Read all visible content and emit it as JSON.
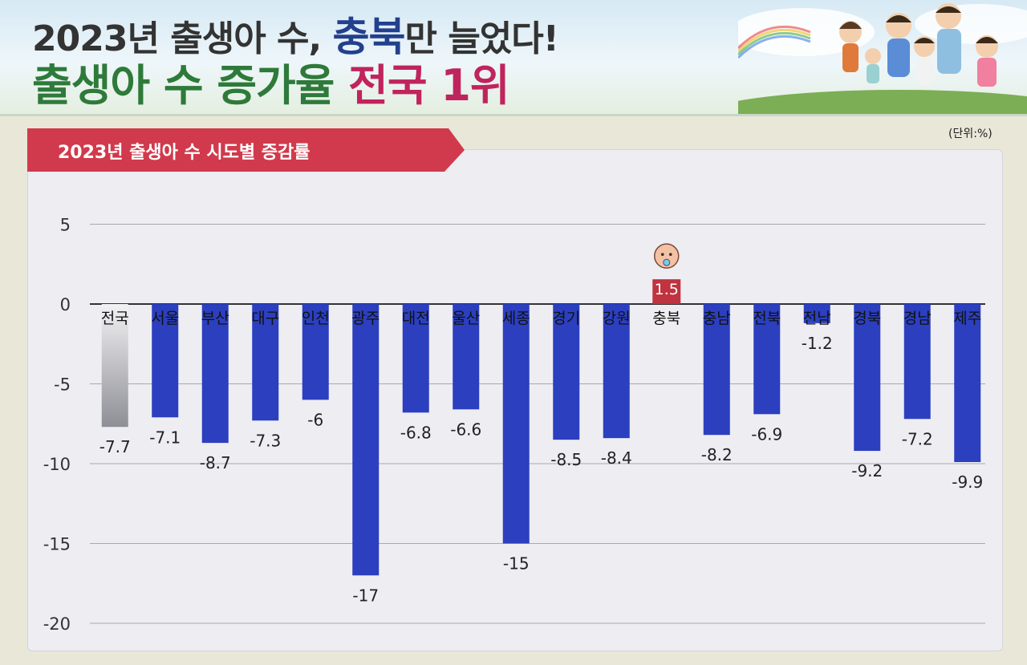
{
  "header": {
    "line1_part1": "2023년 출생아 수, ",
    "line1_highlight": "충북",
    "line1_part2": "만 늘었다!",
    "line2_part1": "출생아 수 증가율 ",
    "line2_highlight": "전국 1위"
  },
  "colors": {
    "bar": "#2b3fbf",
    "national_bar_top": "#f2f2f4",
    "national_bar_bottom": "#8e8e96",
    "highlight_bar": "#c0333f",
    "banner": "#d13a4c",
    "grid": "#a9a9b3",
    "zero_line": "#333333"
  },
  "chart_data": {
    "type": "bar",
    "title": "2023년 출생아 수 시도별 증감률",
    "unit": "(단위:%)",
    "categories": [
      "전국",
      "서울",
      "부산",
      "대구",
      "인천",
      "광주",
      "대전",
      "울산",
      "세종",
      "경기",
      "강원",
      "충북",
      "충남",
      "전북",
      "전남",
      "경북",
      "경남",
      "제주"
    ],
    "values": [
      -7.7,
      -7.1,
      -8.7,
      -7.3,
      -6,
      -17,
      -6.8,
      -6.6,
      -15,
      -8.5,
      -8.4,
      1.5,
      -8.2,
      -6.9,
      -1.2,
      -9.2,
      -7.2,
      -9.9
    ],
    "value_labels": [
      "-7.7",
      "-7.1",
      "-8.7",
      "-7.3",
      "-6",
      "-17",
      "-6.8",
      "-6.6",
      "-15",
      "-8.5",
      "-8.4",
      "1.5",
      "-8.2",
      "-6.9",
      "-1.2",
      "-9.2",
      "-7.2",
      "-9.9"
    ],
    "ylim": [
      -20,
      5
    ],
    "yticks": [
      5,
      0,
      -5,
      -10,
      -15,
      -20
    ],
    "ytick_labels": [
      "5",
      "0",
      "-5",
      "-10",
      "-15",
      "-20"
    ],
    "grid": true,
    "highlight_category": "충북",
    "xlabel": "",
    "ylabel": ""
  }
}
